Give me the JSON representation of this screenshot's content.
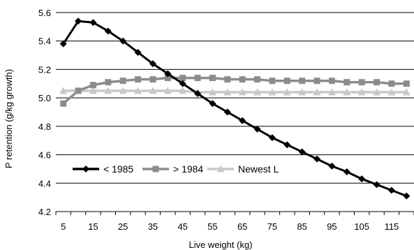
{
  "chart_data": {
    "type": "line",
    "title": "",
    "xlabel": "Live weight (kg)",
    "ylabel": "P retention (g/kg growth)",
    "ylim": [
      4.2,
      5.6
    ],
    "yticks": [
      "4.2",
      "4.4",
      "4.6",
      "4.8",
      "5.0",
      "5.2",
      "5.4",
      "5.6"
    ],
    "x": [
      5,
      10,
      15,
      20,
      25,
      30,
      35,
      40,
      45,
      50,
      55,
      60,
      65,
      70,
      75,
      80,
      85,
      90,
      95,
      100,
      105,
      110,
      115,
      120
    ],
    "xticks": [
      "5",
      "15",
      "25",
      "35",
      "45",
      "55",
      "65",
      "75",
      "85",
      "95",
      "105",
      "115"
    ],
    "grid": "horizontal",
    "legend_position": "lower-left",
    "series": [
      {
        "name": "< 1985",
        "color": "#000000",
        "marker": "diamond",
        "values": [
          5.38,
          5.54,
          5.53,
          5.47,
          5.4,
          5.32,
          5.24,
          5.17,
          5.1,
          5.03,
          4.96,
          4.9,
          4.84,
          4.78,
          4.72,
          4.67,
          4.62,
          4.57,
          4.52,
          4.48,
          4.43,
          4.39,
          4.35,
          4.31
        ]
      },
      {
        "name": "> 1984",
        "color": "#8c8c8c",
        "marker": "square",
        "values": [
          4.96,
          5.05,
          5.09,
          5.11,
          5.12,
          5.13,
          5.13,
          5.14,
          5.14,
          5.14,
          5.14,
          5.13,
          5.13,
          5.13,
          5.12,
          5.12,
          5.12,
          5.12,
          5.12,
          5.11,
          5.11,
          5.11,
          5.1,
          5.1
        ]
      },
      {
        "name": "Newest L",
        "color": "#c8c8c8",
        "marker": "triangle",
        "values": [
          5.05,
          5.05,
          5.05,
          5.05,
          5.05,
          5.05,
          5.05,
          5.05,
          5.05,
          5.04,
          5.04,
          5.04,
          5.04,
          5.04,
          5.04,
          5.04,
          5.04,
          5.04,
          5.04,
          5.04,
          5.04,
          5.04,
          5.04,
          5.04
        ]
      }
    ]
  }
}
